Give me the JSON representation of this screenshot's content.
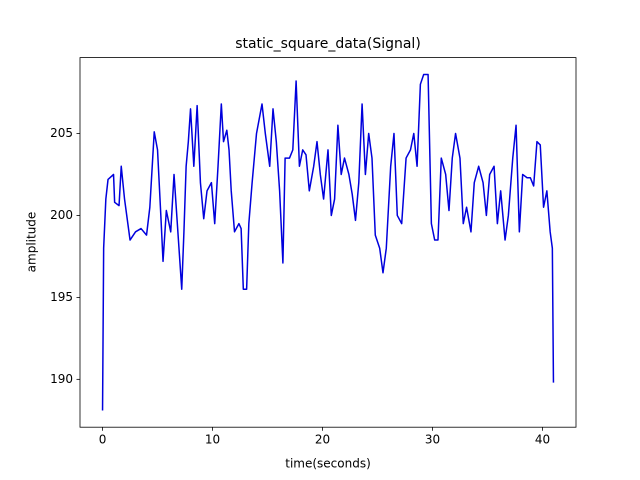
{
  "chart_data": {
    "type": "line",
    "title": "static_square_data(Signal)",
    "x_label": "time(seconds)",
    "y_label": "amplitude",
    "x": [
      0,
      0.1,
      0.3,
      0.5,
      1,
      1.1,
      1.5,
      1.7,
      2,
      2.3,
      2.5,
      3,
      3.5,
      4,
      4.3,
      4.7,
      5,
      5.3,
      5.5,
      5.8,
      6.2,
      6.5,
      6.8,
      7,
      7.2,
      7.4,
      7.6,
      7.8,
      8,
      8.3,
      8.6,
      8.9,
      9.2,
      9.5,
      9.9,
      10.2,
      10.5,
      10.8,
      11,
      11.3,
      11.5,
      11.7,
      12,
      12.4,
      12.6,
      12.8,
      13.1,
      13.3,
      13.6,
      14,
      14.5,
      14.8,
      15.2,
      15.5,
      15.8,
      16.1,
      16.4,
      16.6,
      17,
      17.3,
      17.6,
      17.9,
      18.2,
      18.5,
      18.8,
      19.2,
      19.5,
      19.8,
      20.1,
      20.5,
      20.8,
      21.1,
      21.4,
      21.7,
      22,
      22.4,
      22.7,
      23,
      23.3,
      23.6,
      23.9,
      24.2,
      24.5,
      24.8,
      25.2,
      25.5,
      25.8,
      26.2,
      26.5,
      26.8,
      27.2,
      27.6,
      28,
      28.3,
      28.6,
      28.9,
      29.2,
      29.6,
      29.9,
      30.2,
      30.5,
      30.8,
      31.2,
      31.5,
      31.8,
      32.1,
      32.5,
      32.8,
      33.1,
      33.5,
      33.8,
      34.2,
      34.6,
      34.9,
      35.2,
      35.6,
      35.9,
      36.2,
      36.6,
      36.9,
      37.3,
      37.6,
      37.9,
      38.2,
      38.6,
      38.9,
      39.2,
      39.5,
      39.8,
      40.1,
      40.4,
      40.7,
      40.9,
      41
    ],
    "series": [
      {
        "color": "#0000dd",
        "values": [
          188.1,
          198,
          201,
          202.2,
          202.5,
          200.8,
          200.6,
          203,
          201,
          199.5,
          198.5,
          199,
          199.2,
          198.8,
          200.5,
          205.1,
          204,
          200,
          197.2,
          200.3,
          199,
          202.5,
          199.5,
          197.5,
          195.5,
          199,
          203,
          204.5,
          206.5,
          203,
          206.7,
          202,
          199.8,
          201.5,
          202,
          199.5,
          203,
          206.8,
          204.5,
          205.2,
          204,
          201.5,
          199,
          199.5,
          199.2,
          195.5,
          195.5,
          199.5,
          202,
          205,
          206.8,
          205,
          203,
          206.5,
          204.5,
          201.5,
          197.1,
          203.5,
          203.5,
          204,
          208.2,
          203,
          204,
          203.7,
          201.5,
          203,
          204.5,
          202.5,
          201,
          204,
          200,
          201,
          205.5,
          202.5,
          203.5,
          202.5,
          201.3,
          199.7,
          202,
          206.8,
          202.5,
          205,
          203.5,
          198.8,
          198,
          196.5,
          198,
          203,
          205,
          200,
          199.5,
          203.5,
          204,
          205,
          203,
          208,
          208.6,
          208.6,
          199.5,
          198.5,
          198.5,
          203.5,
          202.5,
          200.3,
          203.5,
          205,
          203.5,
          199.5,
          200.5,
          199,
          202,
          203,
          202,
          200,
          202.5,
          203,
          199.5,
          201.5,
          198.5,
          200,
          203.5,
          205.5,
          199,
          202.5,
          202.3,
          202.3,
          201.8,
          204.5,
          204.3,
          200.5,
          201.5,
          199,
          198,
          189.8
        ]
      }
    ],
    "xlim": [
      -2.05,
      43.05
    ],
    "ylim": [
      187.08,
      209.63
    ],
    "xticks": [
      0,
      10,
      20,
      30,
      40
    ],
    "yticks": [
      190,
      195,
      200,
      205
    ],
    "grid": false
  }
}
